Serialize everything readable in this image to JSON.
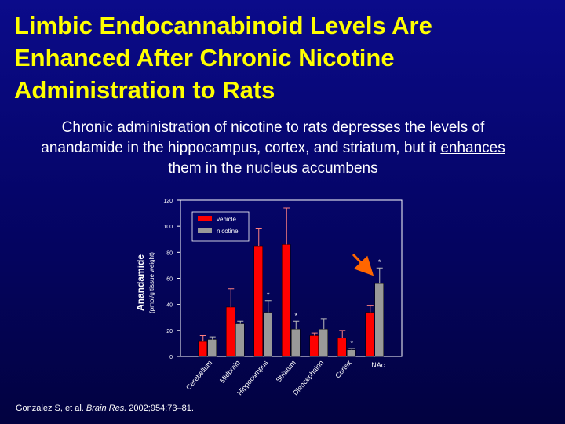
{
  "title_lines": [
    "Limbic Endocannabinoid Levels Are",
    "Enhanced After Chronic Nicotine",
    "Administration to Rats"
  ],
  "subtitle": [
    {
      "text": "Chronic",
      "underline": true
    },
    {
      "text": " administration of nicotine to rats "
    },
    {
      "text": "depresses",
      "underline": true
    },
    {
      "text": " the levels of anandamide in the hippocampus, cortex, and striatum, but it "
    },
    {
      "text": "enhances",
      "underline": true
    },
    {
      "text": " them in the nucleus accumbens"
    }
  ],
  "citation": [
    {
      "text": "Gonzalez S, et al. "
    },
    {
      "text": "Brain Res.",
      "italic": true
    },
    {
      "text": " 2002;954:73–81."
    }
  ],
  "chart_data": {
    "type": "bar",
    "y_label": "Anandamide",
    "y_sublabel": "(pmol/g tissue weight)",
    "categories": [
      "Cerebellum",
      "Midbrain",
      "Hippocampus",
      "Striatum",
      "Diencephalon",
      "Cortex",
      "NAc"
    ],
    "series": [
      {
        "name": "vehicle",
        "color": "#ff0000",
        "values": [
          12,
          38,
          85,
          86,
          16,
          14,
          34
        ],
        "errors": [
          4,
          14,
          13,
          28,
          2,
          6,
          5
        ],
        "error_color": "#ff8080"
      },
      {
        "name": "nicotine",
        "color": "#999999",
        "values": [
          13,
          25,
          34,
          21,
          21,
          5,
          56
        ],
        "errors": [
          2,
          2,
          9,
          6,
          8,
          1,
          12
        ],
        "error_color": "#bbbbbb"
      }
    ],
    "annotations": [
      {
        "series": 1,
        "index": 2,
        "text": "*"
      },
      {
        "series": 1,
        "index": 3,
        "text": "*"
      },
      {
        "series": 1,
        "index": 5,
        "text": "*"
      },
      {
        "series": 1,
        "index": 6,
        "text": "*"
      }
    ],
    "ylim": [
      0,
      120
    ],
    "yticks": [
      0,
      20,
      40,
      60,
      80,
      100,
      120
    ],
    "legend": "upper left"
  }
}
